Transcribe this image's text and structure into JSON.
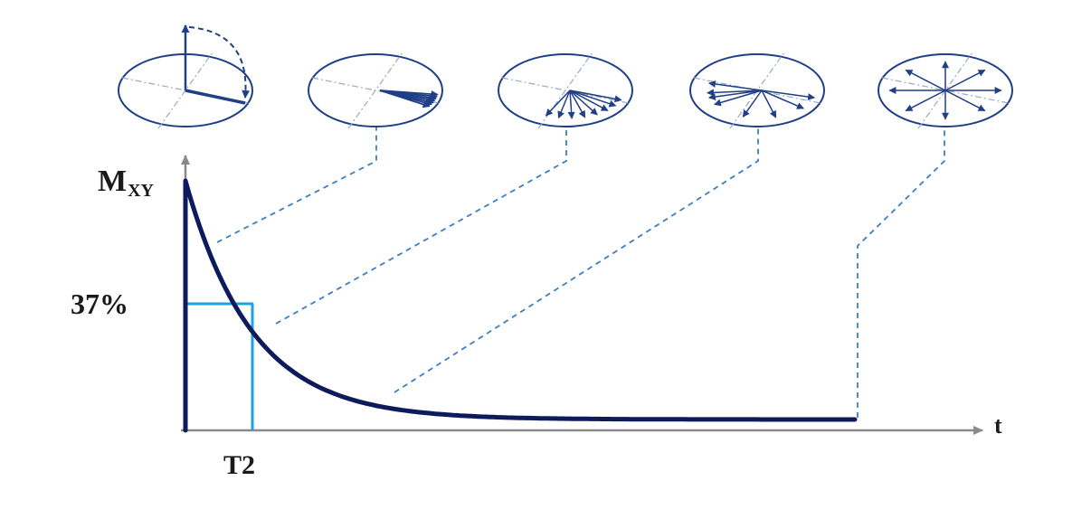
{
  "labels": {
    "y_axis_main": "M",
    "y_axis_sub": "XY",
    "level_marker": "37%",
    "time_marker": "T2",
    "x_axis": "t"
  },
  "colors": {
    "curve": "#0d1a5c",
    "axis": "#8a8a8a",
    "marker": "#1aa3e8",
    "leader": "#3a7fc4",
    "ellipse": "#1f3f86",
    "vector": "#1f3f86",
    "guide": "#9aa9c4"
  },
  "spin_states": [
    {
      "name": "aligned",
      "vector_count": 1
    },
    {
      "name": "slight-dephasing",
      "vector_count": 7
    },
    {
      "name": "partial-dephasing",
      "vector_count": 8
    },
    {
      "name": "strong-dephasing",
      "vector_count": 8
    },
    {
      "name": "fully-dephased",
      "vector_count": 8
    }
  ]
}
